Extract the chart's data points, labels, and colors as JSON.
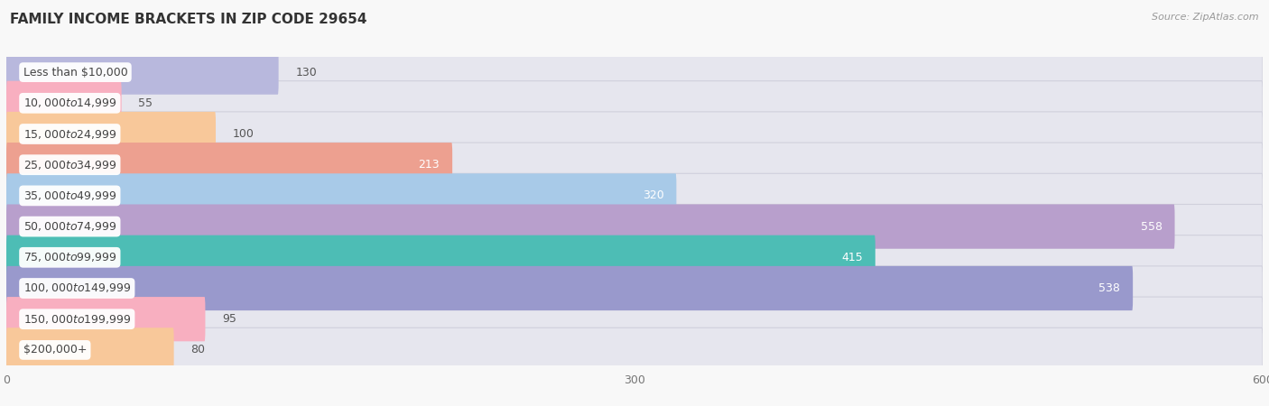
{
  "title": "FAMILY INCOME BRACKETS IN ZIP CODE 29654",
  "source": "Source: ZipAtlas.com",
  "categories": [
    "Less than $10,000",
    "$10,000 to $14,999",
    "$15,000 to $24,999",
    "$25,000 to $34,999",
    "$35,000 to $49,999",
    "$50,000 to $74,999",
    "$75,000 to $99,999",
    "$100,000 to $149,999",
    "$150,000 to $199,999",
    "$200,000+"
  ],
  "values": [
    130,
    55,
    100,
    213,
    320,
    558,
    415,
    538,
    95,
    80
  ],
  "bar_colors": [
    "#b8b8dd",
    "#f8afc0",
    "#f8c89a",
    "#eda090",
    "#a8caE8",
    "#b89fcc",
    "#4dbdb5",
    "#9999cc",
    "#f8afc0",
    "#f8c89a"
  ],
  "track_color": "#e6e6ee",
  "track_border_color": "#d0d0dc",
  "xlim": [
    0,
    600
  ],
  "xticks": [
    0,
    300,
    600
  ],
  "bg_color": "#f8f8f8",
  "row_bg_even": "#f0f0f4",
  "row_bg_odd": "#ffffff",
  "title_fontsize": 11,
  "label_fontsize": 9,
  "value_fontsize": 9,
  "white_threshold": 200
}
